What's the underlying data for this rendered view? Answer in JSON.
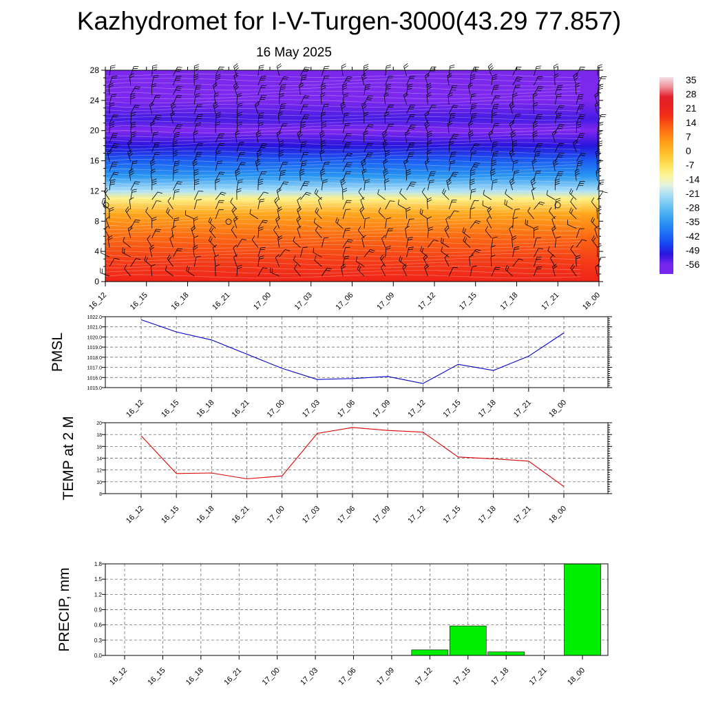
{
  "title": "Kazhydromet for I-V-Turgen-3000(43.29 77.857)",
  "subtitle": "16 May 2025",
  "colors": {
    "pmsl_line": "#0000cc",
    "temp_line": "#dd0000",
    "precip_bar": "#00ee00",
    "wind_barb": "#000000"
  },
  "chart_data": [
    {
      "type": "heatmap",
      "title": "",
      "xlabel": "",
      "ylabel": "",
      "x_ticks": [
        "16_12",
        "16_15",
        "16_18",
        "16_21",
        "17_00",
        "17_03",
        "17_06",
        "17_09",
        "17_12",
        "17_15",
        "17_18",
        "17_21",
        "18_00"
      ],
      "y_ticks": [
        "0",
        "4",
        "8",
        "12",
        "16",
        "20",
        "24",
        "28"
      ],
      "ylim": [
        0,
        28
      ],
      "colorbar_labels": [
        "35",
        "28",
        "21",
        "14",
        "7",
        "0",
        "-7",
        "-14",
        "-21",
        "-28",
        "-35",
        "-42",
        "-49",
        "-56"
      ],
      "colorbar_range": [
        -60,
        38
      ],
      "temperature_profile": [
        {
          "level": 0,
          "value": 20
        },
        {
          "level": 3,
          "value": 17
        },
        {
          "level": 6,
          "value": 12
        },
        {
          "level": 9,
          "value": 4
        },
        {
          "level": 11,
          "value": -10
        },
        {
          "level": 12,
          "value": -20
        },
        {
          "level": 14,
          "value": -34
        },
        {
          "level": 16,
          "value": -42
        },
        {
          "level": 18,
          "value": -50
        },
        {
          "level": 20,
          "value": -56
        },
        {
          "level": 21.5,
          "value": -52
        },
        {
          "level": 24,
          "value": -58
        },
        {
          "level": 28,
          "value": -59
        }
      ],
      "wind_barbs": "present"
    },
    {
      "type": "line",
      "ylabel": "PMSL",
      "x": [
        "16_12",
        "16_15",
        "16_18",
        "16_21",
        "17_00",
        "17_03",
        "17_06",
        "17_09",
        "17_12",
        "17_15",
        "17_18",
        "17_21",
        "18_00"
      ],
      "values": [
        1021.7,
        1020.5,
        1019.7,
        1018.3,
        1016.9,
        1015.8,
        1015.9,
        1016.1,
        1015.4,
        1017.3,
        1016.7,
        1018.1,
        1020.4
      ],
      "ylim": [
        1015.0,
        1022.0
      ],
      "y_ticks": [
        "1015.0",
        "1016.0",
        "1017.0",
        "1018.0",
        "1019.0",
        "1020.0",
        "1021.0",
        "1022.0"
      ],
      "grid": true
    },
    {
      "type": "line",
      "ylabel": "TEMP at 2 M",
      "x": [
        "16_12",
        "16_15",
        "16_18",
        "16_21",
        "17_00",
        "17_03",
        "17_06",
        "17_09",
        "17_12",
        "17_15",
        "17_18",
        "17_21",
        "18_00"
      ],
      "values": [
        17.8,
        11.4,
        11.5,
        10.5,
        11.0,
        18.2,
        19.2,
        18.7,
        18.4,
        14.2,
        13.9,
        13.5,
        9.2
      ],
      "ylim": [
        8,
        20
      ],
      "y_ticks": [
        "8",
        "10",
        "12",
        "14",
        "16",
        "18",
        "20"
      ],
      "grid": true
    },
    {
      "type": "bar",
      "ylabel": "PRECIP, mm",
      "categories": [
        "16_12",
        "16_15",
        "16_18",
        "16_21",
        "17_00",
        "17_03",
        "17_06",
        "17_09",
        "17_12",
        "17_15",
        "17_18",
        "17_21",
        "18_00"
      ],
      "values": [
        0,
        0,
        0,
        0,
        0,
        0,
        0,
        0,
        0.11,
        0.58,
        0.07,
        0,
        1.8
      ],
      "ylim": [
        0,
        1.8
      ],
      "y_ticks": [
        "0.0",
        "0.3",
        "0.6",
        "0.9",
        "1.2",
        "1.5",
        "1.8"
      ],
      "grid": true
    }
  ]
}
